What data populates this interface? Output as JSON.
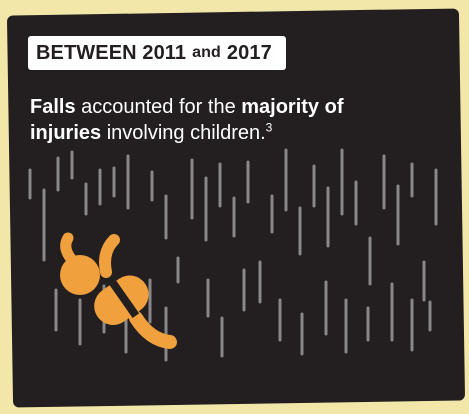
{
  "badge": {
    "prefix": "BETWEEN 2011",
    "connector": "and",
    "suffix": "2017"
  },
  "headline": {
    "part1_bold": "Falls",
    "part2": " accounted for the ",
    "part3_bold": "majority of",
    "part4_bold": "injuries",
    "part5": " involving children.",
    "footnote": "3"
  },
  "icons": {
    "falling_child": "falling-child-icon",
    "rain": "rain-streaks"
  },
  "colors": {
    "background": "#f2e7a8",
    "card": "#231f20",
    "accent": "#f0a03c",
    "rain": "#8a8788"
  }
}
